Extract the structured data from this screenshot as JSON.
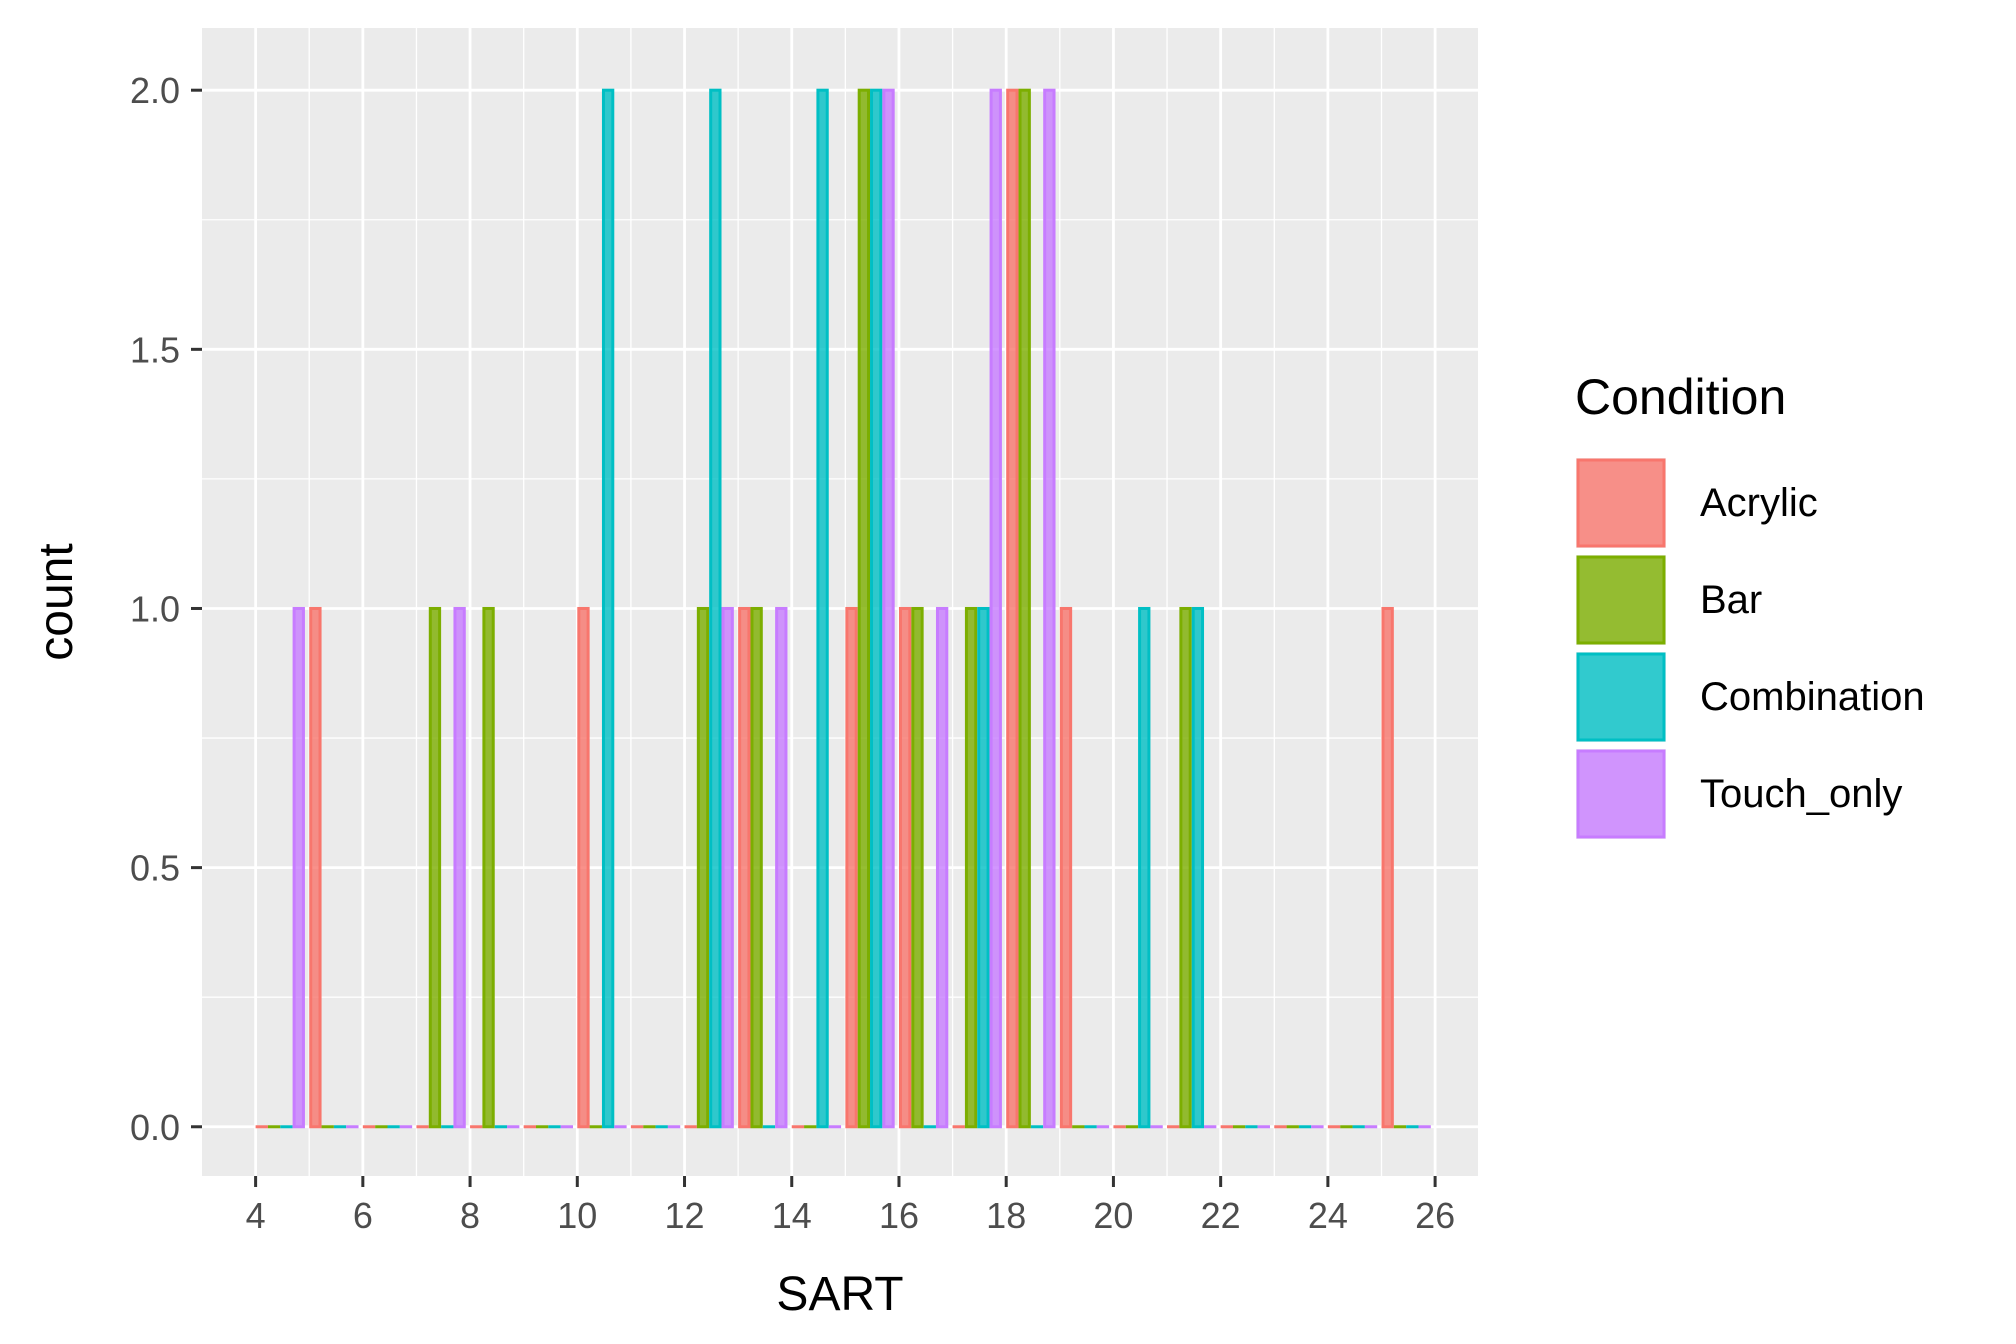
{
  "chart_data": {
    "type": "bar",
    "title": "",
    "xlabel": "SART",
    "ylabel": "count",
    "xlim": [
      4,
      26
    ],
    "ylim": [
      0,
      2
    ],
    "x_ticks": [
      "4",
      "6",
      "8",
      "10",
      "12",
      "14",
      "16",
      "18",
      "20",
      "22",
      "24",
      "26"
    ],
    "y_ticks": [
      "0.0",
      "0.5",
      "1.0",
      "1.5",
      "2.0"
    ],
    "grid": true,
    "legend_position": "right",
    "legend_title": "Condition",
    "bins": [
      4,
      5,
      6,
      7,
      8,
      9,
      10,
      11,
      12,
      13,
      14,
      15,
      16,
      17,
      18,
      19,
      20,
      21,
      22,
      23,
      24,
      25
    ],
    "series": [
      {
        "name": "Acrylic",
        "color": "#F8766D",
        "values": [
          0,
          1,
          0,
          0,
          0,
          0,
          1,
          0,
          0,
          1,
          0,
          1,
          1,
          0,
          2,
          1,
          0,
          0,
          0,
          0,
          0,
          1
        ]
      },
      {
        "name": "Bar",
        "color": "#7CAE00",
        "values": [
          0,
          0,
          0,
          1,
          1,
          0,
          0,
          0,
          1,
          1,
          0,
          2,
          1,
          1,
          2,
          0,
          0,
          1,
          0,
          0,
          0,
          0
        ]
      },
      {
        "name": "Combination",
        "color": "#00BFC4",
        "values": [
          0,
          0,
          0,
          0,
          0,
          0,
          2,
          0,
          2,
          0,
          2,
          2,
          0,
          1,
          0,
          0,
          1,
          1,
          0,
          0,
          0,
          0
        ]
      },
      {
        "name": "Touch_only",
        "color": "#C77CFF",
        "values": [
          1,
          0,
          0,
          1,
          0,
          0,
          0,
          0,
          1,
          1,
          0,
          2,
          1,
          2,
          2,
          0,
          0,
          0,
          0,
          0,
          0,
          0
        ]
      }
    ]
  }
}
